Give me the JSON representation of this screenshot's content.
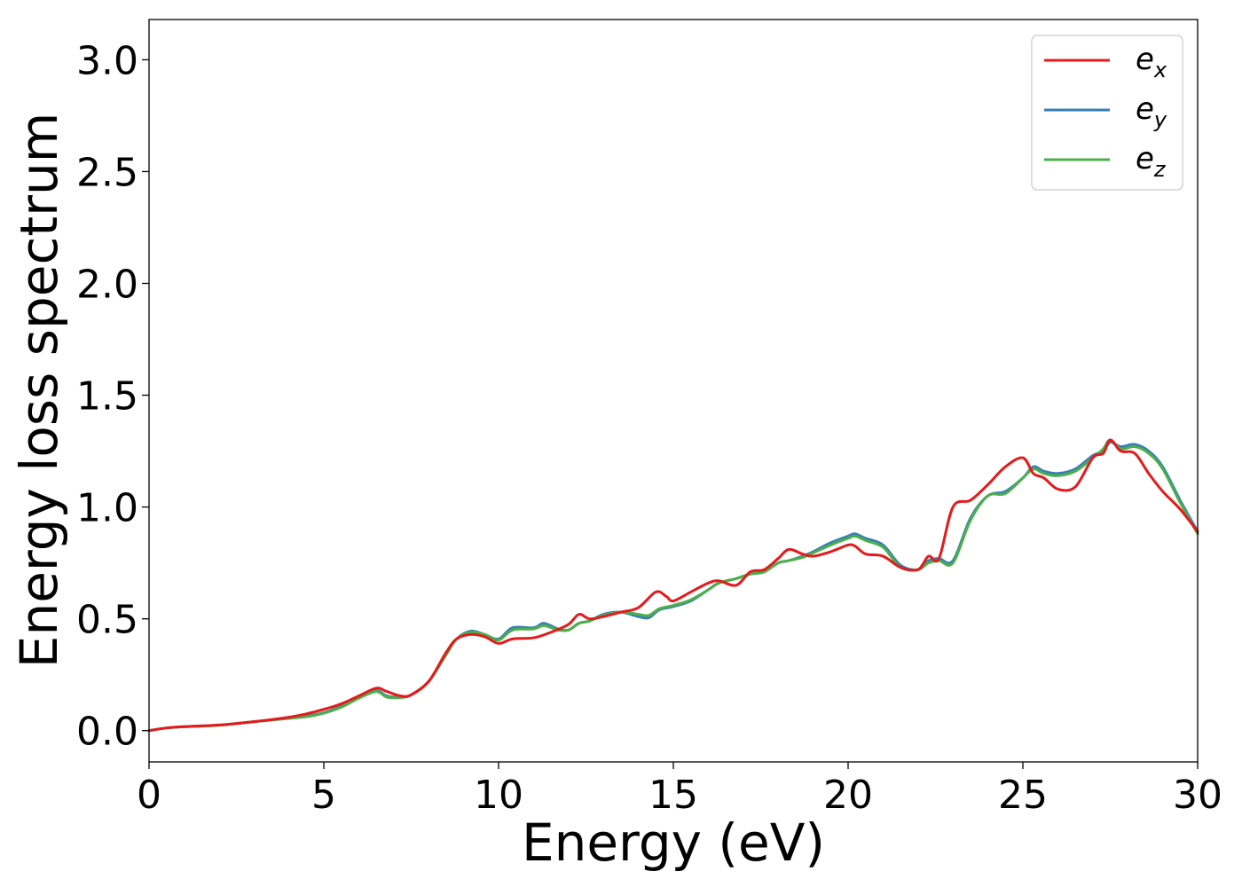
{
  "chart_data": {
    "type": "line",
    "xlabel": "Energy (eV)",
    "ylabel": "Energy loss spectrum",
    "xlim": [
      0,
      30
    ],
    "ylim": [
      -0.14,
      3.18
    ],
    "xticks": [
      "0",
      "5",
      "10",
      "15",
      "20",
      "25",
      "30"
    ],
    "yticks": [
      "0.0",
      "0.5",
      "1.0",
      "1.5",
      "2.0",
      "2.5",
      "3.0"
    ],
    "grid": false,
    "legend_position": "top-right",
    "series": [
      {
        "name": "e_x",
        "label_base": "e",
        "label_sub": "x",
        "color": "#e41a1c",
        "x": [
          0,
          0.5,
          1,
          2,
          3,
          4,
          4.5,
          5,
          5.5,
          6,
          6.5,
          6.8,
          7.2,
          7.5,
          8,
          8.5,
          8.8,
          9.2,
          9.6,
          10,
          10.4,
          11,
          11.5,
          12,
          12.3,
          12.6,
          13,
          13.5,
          14,
          14.5,
          14.8,
          15,
          15.5,
          16,
          16.3,
          16.8,
          17.2,
          17.6,
          18,
          18.3,
          18.7,
          19,
          19.5,
          20,
          20.2,
          20.5,
          21,
          21.5,
          22,
          22.3,
          22.6,
          23,
          23.5,
          24,
          24.5,
          25,
          25.3,
          25.6,
          26,
          26.5,
          27,
          27.3,
          27.5,
          27.8,
          28.2,
          28.6,
          29,
          29.5,
          30
        ],
        "values": [
          0.0,
          0.012,
          0.018,
          0.025,
          0.04,
          0.06,
          0.075,
          0.095,
          0.12,
          0.155,
          0.19,
          0.175,
          0.155,
          0.16,
          0.22,
          0.35,
          0.41,
          0.43,
          0.42,
          0.39,
          0.41,
          0.415,
          0.44,
          0.475,
          0.52,
          0.5,
          0.51,
          0.53,
          0.55,
          0.62,
          0.6,
          0.58,
          0.62,
          0.66,
          0.67,
          0.65,
          0.71,
          0.72,
          0.77,
          0.81,
          0.79,
          0.78,
          0.8,
          0.83,
          0.825,
          0.79,
          0.78,
          0.73,
          0.72,
          0.78,
          0.77,
          1.0,
          1.03,
          1.1,
          1.18,
          1.22,
          1.15,
          1.13,
          1.08,
          1.09,
          1.22,
          1.24,
          1.3,
          1.25,
          1.24,
          1.15,
          1.07,
          0.99,
          0.89
        ]
      },
      {
        "name": "e_y",
        "label_base": "e",
        "label_sub": "y",
        "color": "#377eb8",
        "x": [
          0,
          0.5,
          1,
          2,
          3,
          4,
          4.5,
          5,
          5.5,
          6,
          6.5,
          6.8,
          7.2,
          7.5,
          8,
          8.5,
          8.8,
          9.2,
          9.6,
          10,
          10.4,
          11,
          11.3,
          11.7,
          12,
          12.3,
          12.6,
          13,
          13.5,
          14,
          14.3,
          14.6,
          15,
          15.5,
          16,
          16.3,
          16.8,
          17.2,
          17.6,
          18,
          18.3,
          18.7,
          19,
          19.5,
          20,
          20.2,
          20.5,
          21,
          21.5,
          22,
          22.3,
          22.6,
          23,
          23.5,
          24,
          24.5,
          25,
          25.3,
          25.6,
          26,
          26.5,
          27,
          27.3,
          27.5,
          27.8,
          28.2,
          28.6,
          29,
          29.5,
          30
        ],
        "values": [
          0.0,
          0.012,
          0.017,
          0.024,
          0.04,
          0.055,
          0.065,
          0.08,
          0.11,
          0.15,
          0.18,
          0.155,
          0.15,
          0.16,
          0.22,
          0.34,
          0.41,
          0.445,
          0.43,
          0.41,
          0.46,
          0.46,
          0.48,
          0.455,
          0.45,
          0.48,
          0.49,
          0.52,
          0.53,
          0.51,
          0.505,
          0.54,
          0.555,
          0.58,
          0.63,
          0.66,
          0.68,
          0.7,
          0.71,
          0.75,
          0.76,
          0.78,
          0.8,
          0.84,
          0.87,
          0.88,
          0.86,
          0.83,
          0.74,
          0.72,
          0.76,
          0.77,
          0.76,
          0.95,
          1.05,
          1.07,
          1.13,
          1.18,
          1.16,
          1.15,
          1.17,
          1.23,
          1.25,
          1.29,
          1.27,
          1.28,
          1.25,
          1.18,
          1.03,
          0.89
        ]
      },
      {
        "name": "e_z",
        "label_base": "e",
        "label_sub": "z",
        "color": "#4daf4a",
        "x": [
          0,
          0.5,
          1,
          2,
          3,
          4,
          4.5,
          5,
          5.5,
          6,
          6.5,
          6.8,
          7.2,
          7.5,
          8,
          8.5,
          8.8,
          9.2,
          9.6,
          10,
          10.4,
          11,
          11.3,
          11.7,
          12,
          12.3,
          12.6,
          13,
          13.5,
          14,
          14.3,
          14.6,
          15,
          15.5,
          16,
          16.3,
          16.8,
          17.2,
          17.6,
          18,
          18.3,
          18.7,
          19,
          19.5,
          20,
          20.2,
          20.5,
          21,
          21.5,
          22,
          22.3,
          22.6,
          23,
          23.5,
          24,
          24.5,
          25,
          25.3,
          25.6,
          26,
          26.5,
          27,
          27.3,
          27.5,
          27.8,
          28.2,
          28.6,
          29,
          29.5,
          30
        ],
        "values": [
          0.0,
          0.012,
          0.017,
          0.024,
          0.04,
          0.055,
          0.062,
          0.078,
          0.105,
          0.145,
          0.175,
          0.15,
          0.148,
          0.16,
          0.22,
          0.34,
          0.41,
          0.44,
          0.43,
          0.405,
          0.45,
          0.455,
          0.47,
          0.45,
          0.45,
          0.48,
          0.49,
          0.515,
          0.53,
          0.52,
          0.515,
          0.545,
          0.56,
          0.585,
          0.63,
          0.66,
          0.68,
          0.7,
          0.71,
          0.75,
          0.76,
          0.775,
          0.795,
          0.83,
          0.86,
          0.87,
          0.85,
          0.82,
          0.73,
          0.72,
          0.75,
          0.76,
          0.75,
          0.94,
          1.05,
          1.06,
          1.13,
          1.17,
          1.15,
          1.14,
          1.16,
          1.22,
          1.26,
          1.3,
          1.26,
          1.27,
          1.24,
          1.17,
          1.02,
          0.88
        ]
      }
    ]
  }
}
